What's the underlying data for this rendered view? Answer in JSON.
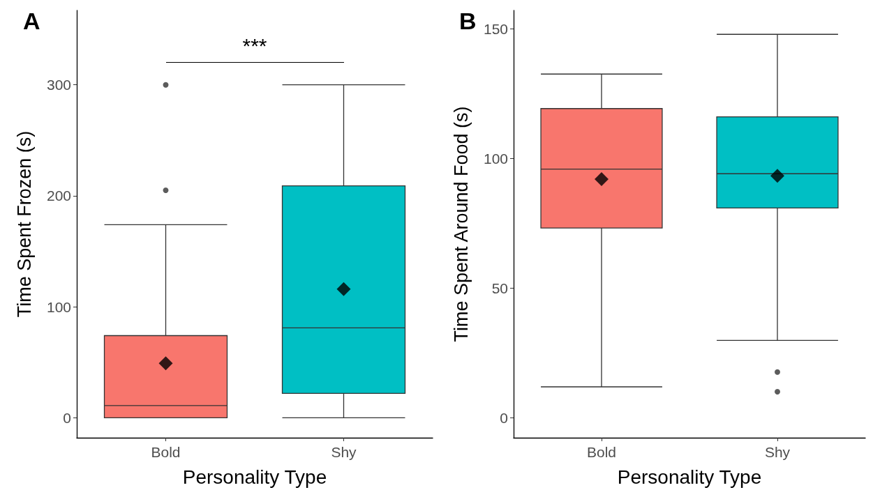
{
  "chart_data": [
    {
      "type": "box",
      "title": "A",
      "xlabel": "Personality Type",
      "ylabel": "Time Spent Frozen (s)",
      "categories": [
        "Bold",
        "Shy"
      ],
      "colors": [
        "#f8766d",
        "#00bfc4"
      ],
      "boxes": [
        {
          "low": 0,
          "q1": 0,
          "median": 11,
          "q3": 74,
          "high": 174,
          "mean": 49,
          "outliers": [
            205,
            300
          ]
        },
        {
          "low": 0,
          "q1": 22,
          "median": 81,
          "q3": 209,
          "high": 300,
          "mean": 116
        }
      ],
      "ylim": [
        -18,
        367
      ],
      "yticks": [
        0,
        100,
        200,
        300
      ],
      "annotations": [
        "***"
      ]
    },
    {
      "type": "box",
      "title": "B",
      "xlabel": "Personality Type",
      "ylabel": "Time Spent Around Food (s)",
      "categories": [
        "Bold",
        "Shy"
      ],
      "colors": [
        "#f8766d",
        "#00bfc4"
      ],
      "boxes": [
        {
          "low": 12,
          "q1": 73.2,
          "median": 95.9,
          "q3": 119.2,
          "high": 132.5,
          "mean": 92
        },
        {
          "low": 29.9,
          "q1": 80.9,
          "median": 94.1,
          "q3": 116,
          "high": 147.8,
          "mean": 93.3,
          "outliers": [
            17.7,
            10.1
          ]
        }
      ],
      "ylim": [
        -7.6,
        157
      ],
      "yticks": [
        0,
        50,
        100,
        150
      ]
    }
  ]
}
